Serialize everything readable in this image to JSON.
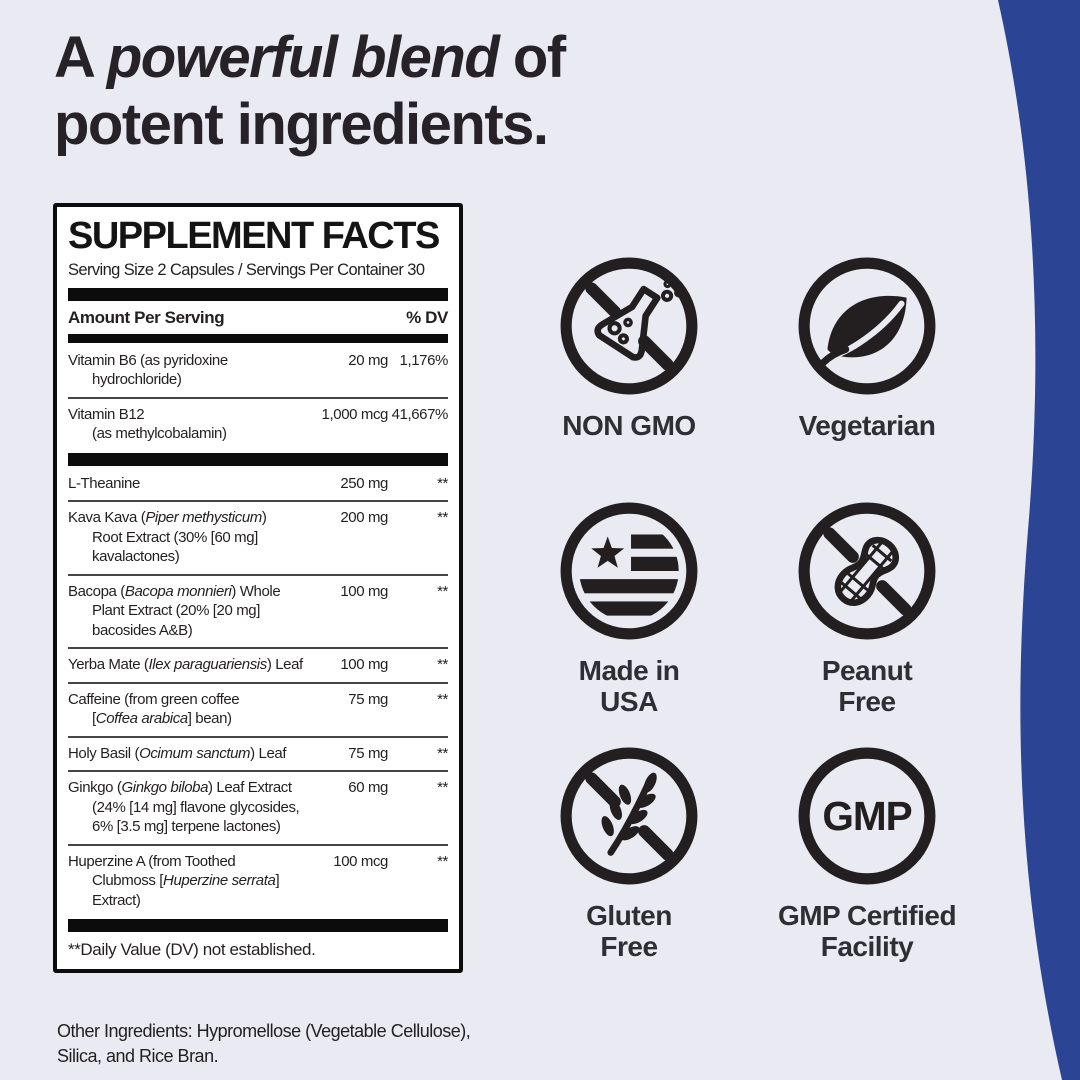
{
  "page": {
    "background_color": "#e9eaf2",
    "accent_blue": "#2b4493",
    "text_color": "#231f20"
  },
  "headline": {
    "line1_prefix": "A ",
    "line1_emphasis": "powerful blend",
    "line1_suffix": " of",
    "line2": "potent ingredients."
  },
  "supplement_facts": {
    "title": "SUPPLEMENT FACTS",
    "serving_line": "Serving Size 2 Capsules / Servings Per Container 30",
    "amount_header": "Amount Per Serving",
    "dv_header": "% DV",
    "sections": [
      {
        "rows": [
          {
            "name": "Vitamin B6 (as pyridoxine\nhydrochloride)",
            "amount": "20 mg",
            "dv": "1,176%"
          },
          {
            "name": "Vitamin B12\n(as methylcobalamin)",
            "amount": "1,000 mcg",
            "dv": "41,667%"
          }
        ]
      },
      {
        "rows": [
          {
            "name": "L-Theanine",
            "amount": "250 mg",
            "dv": "**"
          },
          {
            "name": "Kava Kava (*Piper methysticum*)\nRoot Extract (30% [60 mg]\nkavalactones)",
            "amount": "200 mg",
            "dv": "**"
          },
          {
            "name": "Bacopa (*Bacopa monnieri*) Whole\nPlant Extract (20% [20 mg]\nbacosides A&B)",
            "amount": "100 mg",
            "dv": "**"
          },
          {
            "name": "Yerba Mate (*Ilex paraguariensis*) Leaf",
            "amount": "100 mg",
            "dv": "**"
          },
          {
            "name": "Caffeine (from green coffee\n[*Coffea arabica*] bean)",
            "amount": "75 mg",
            "dv": "**"
          },
          {
            "name": "Holy Basil (*Ocimum sanctum*) Leaf",
            "amount": "75 mg",
            "dv": "**"
          },
          {
            "name": "Ginkgo (*Ginkgo biloba*) Leaf Extract\n(24% [14 mg] flavone glycosides,\n6% [3.5 mg] terpene lactones)",
            "amount": "60 mg",
            "dv": "**"
          },
          {
            "name": "Huperzine A (from Toothed\nClubmoss [*Huperzine serrata*]\nExtract)",
            "amount": "100 mcg",
            "dv": "**"
          }
        ]
      }
    ],
    "footnote": "**Daily Value (DV) not established.",
    "other_ingredients": "Other Ingredients: Hypromellose (Vegetable Cellulose), Silica, and Rice Bran."
  },
  "badges": [
    {
      "icon": "no-gmo-flask-icon",
      "label_lines": [
        "NON GMO"
      ]
    },
    {
      "icon": "vegetarian-leaf-icon",
      "label_lines": [
        "Vegetarian"
      ]
    },
    {
      "icon": "made-in-usa-flag-icon",
      "label_lines": [
        "Made in",
        "USA"
      ]
    },
    {
      "icon": "peanut-free-icon",
      "label_lines": [
        "Peanut",
        "Free"
      ]
    },
    {
      "icon": "gluten-free-wheat-icon",
      "label_lines": [
        "Gluten",
        "Free"
      ]
    },
    {
      "icon": "gmp-certified-icon",
      "icon_text": "GMP",
      "label_lines": [
        "GMP Certified",
        "Facility"
      ]
    }
  ]
}
